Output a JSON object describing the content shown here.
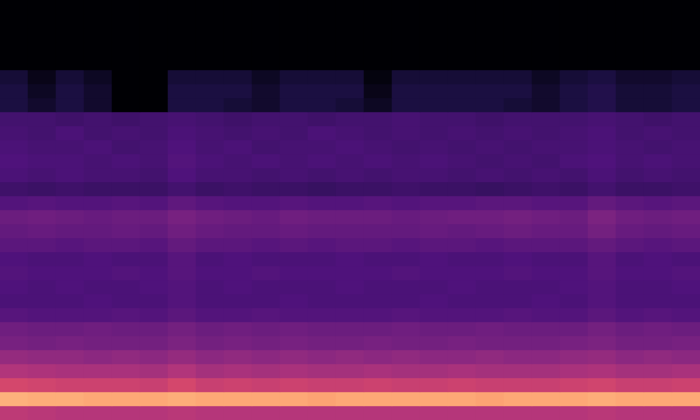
{
  "chart_data": {
    "type": "heatmap",
    "color": "magma",
    "zlim": [
      0,
      100
    ],
    "grid": false,
    "tick_labels": false,
    "cells": [
      [
        0,
        0,
        0,
        0,
        0,
        0,
        0,
        0,
        0,
        0,
        0,
        0,
        0,
        0,
        0,
        0,
        0,
        0,
        0,
        0,
        0,
        0,
        0,
        0,
        0
      ],
      [
        0,
        0,
        0,
        0,
        0,
        0,
        0,
        0,
        0,
        0,
        0,
        0,
        0,
        0,
        0,
        0,
        0,
        0,
        0,
        0,
        0,
        0,
        0,
        0,
        0
      ],
      [
        0,
        0,
        0,
        0,
        0,
        0,
        0,
        0,
        0,
        0,
        0,
        0,
        0,
        0,
        0,
        0,
        0,
        0,
        0,
        0,
        0,
        0,
        0,
        0,
        0
      ],
      [
        0,
        0,
        0,
        0,
        0,
        0,
        0,
        0,
        0,
        0,
        0,
        0,
        0,
        0,
        0,
        0,
        0,
        0,
        0,
        0,
        0,
        0,
        0,
        0,
        0
      ],
      [
        0,
        0,
        0,
        0,
        0,
        0,
        0,
        0,
        0,
        0,
        0,
        0,
        0,
        0,
        0,
        0,
        0,
        0,
        0,
        0,
        0,
        0,
        0,
        0,
        0
      ],
      [
        10,
        4,
        10,
        6,
        0,
        0,
        10,
        10,
        10,
        6,
        10,
        10,
        10,
        2,
        10,
        10,
        10,
        10,
        10,
        6,
        10,
        12,
        8,
        8,
        10
      ],
      [
        12,
        6,
        12,
        8,
        0,
        0,
        12,
        12,
        12,
        8,
        12,
        12,
        12,
        4,
        12,
        12,
        12,
        12,
        12,
        8,
        12,
        14,
        10,
        10,
        12
      ],
      [
        12,
        8,
        12,
        8,
        0,
        0,
        12,
        12,
        10,
        8,
        12,
        12,
        10,
        6,
        12,
        12,
        12,
        12,
        10,
        8,
        12,
        14,
        10,
        10,
        12
      ],
      [
        22,
        22,
        21,
        22,
        21,
        22,
        23,
        22,
        21,
        22,
        22,
        21,
        22,
        22,
        23,
        22,
        22,
        21,
        22,
        22,
        22,
        23,
        22,
        21,
        22
      ],
      [
        23,
        22,
        24,
        22,
        23,
        22,
        24,
        23,
        22,
        23,
        22,
        24,
        23,
        22,
        23,
        22,
        23,
        22,
        23,
        22,
        23,
        24,
        22,
        23,
        22
      ],
      [
        24,
        23,
        23,
        24,
        22,
        23,
        25,
        23,
        24,
        22,
        23,
        23,
        24,
        23,
        22,
        23,
        22,
        23,
        22,
        23,
        23,
        24,
        23,
        22,
        23
      ],
      [
        25,
        24,
        24,
        23,
        24,
        23,
        26,
        24,
        23,
        24,
        23,
        24,
        23,
        24,
        23,
        24,
        23,
        22,
        23,
        22,
        24,
        25,
        23,
        24,
        23
      ],
      [
        24,
        23,
        24,
        23,
        23,
        22,
        25,
        23,
        23,
        22,
        23,
        22,
        23,
        22,
        23,
        23,
        22,
        23,
        22,
        23,
        22,
        24,
        22,
        23,
        22
      ],
      [
        21,
        20,
        21,
        20,
        20,
        20,
        22,
        20,
        21,
        20,
        20,
        19,
        20,
        20,
        21,
        20,
        20,
        19,
        20,
        21,
        20,
        22,
        20,
        20,
        21
      ],
      [
        26,
        27,
        26,
        26,
        27,
        26,
        29,
        27,
        26,
        26,
        27,
        26,
        26,
        27,
        26,
        27,
        27,
        28,
        28,
        27,
        27,
        30,
        28,
        27,
        28
      ],
      [
        32,
        33,
        32,
        31,
        32,
        32,
        35,
        33,
        32,
        31,
        33,
        32,
        32,
        32,
        31,
        32,
        33,
        33,
        34,
        33,
        32,
        36,
        33,
        32,
        33
      ],
      [
        30,
        31,
        30,
        30,
        31,
        30,
        33,
        31,
        30,
        30,
        31,
        30,
        30,
        30,
        30,
        31,
        30,
        31,
        32,
        31,
        31,
        34,
        31,
        30,
        31
      ],
      [
        28,
        28,
        27,
        28,
        28,
        27,
        30,
        28,
        28,
        27,
        28,
        27,
        28,
        28,
        27,
        28,
        28,
        27,
        28,
        28,
        28,
        30,
        28,
        27,
        28
      ],
      [
        25,
        24,
        24,
        25,
        24,
        24,
        27,
        24,
        25,
        24,
        24,
        24,
        25,
        24,
        24,
        25,
        24,
        24,
        25,
        24,
        24,
        27,
        24,
        25,
        24
      ],
      [
        26,
        25,
        25,
        25,
        26,
        25,
        27,
        25,
        25,
        26,
        25,
        25,
        25,
        25,
        26,
        25,
        25,
        25,
        26,
        25,
        25,
        27,
        25,
        25,
        26
      ],
      [
        25,
        24,
        25,
        24,
        24,
        25,
        26,
        24,
        25,
        24,
        24,
        24,
        25,
        24,
        24,
        24,
        25,
        24,
        24,
        24,
        25,
        26,
        24,
        24,
        25
      ],
      [
        24,
        24,
        24,
        25,
        24,
        24,
        26,
        24,
        24,
        24,
        25,
        24,
        24,
        24,
        24,
        25,
        24,
        24,
        24,
        25,
        24,
        26,
        24,
        24,
        24
      ],
      [
        27,
        26,
        26,
        26,
        27,
        26,
        28,
        26,
        26,
        27,
        26,
        26,
        26,
        26,
        27,
        26,
        26,
        26,
        27,
        26,
        26,
        28,
        26,
        27,
        26
      ],
      [
        33,
        32,
        32,
        33,
        32,
        32,
        34,
        32,
        33,
        32,
        33,
        32,
        32,
        32,
        33,
        32,
        32,
        33,
        32,
        32,
        32,
        34,
        32,
        33,
        32
      ],
      [
        35,
        34,
        35,
        34,
        34,
        34,
        36,
        34,
        35,
        34,
        35,
        34,
        34,
        35,
        34,
        34,
        35,
        34,
        34,
        34,
        35,
        36,
        34,
        34,
        35
      ],
      [
        42,
        41,
        41,
        40,
        41,
        40,
        42,
        40,
        41,
        40,
        41,
        40,
        41,
        40,
        41,
        40,
        40,
        41,
        40,
        40,
        41,
        42,
        40,
        41,
        40
      ],
      [
        49,
        48,
        47,
        47,
        47,
        46,
        49,
        46,
        47,
        46,
        47,
        46,
        46,
        47,
        46,
        46,
        47,
        46,
        46,
        46,
        47,
        48,
        46,
        46,
        47
      ],
      [
        58,
        57,
        56,
        56,
        56,
        55,
        58,
        55,
        56,
        55,
        56,
        55,
        55,
        56,
        55,
        55,
        56,
        55,
        55,
        55,
        56,
        57,
        55,
        55,
        56
      ],
      [
        84,
        83,
        83,
        82,
        82,
        82,
        83,
        82,
        82,
        82,
        82,
        81,
        82,
        82,
        82,
        82,
        82,
        81,
        82,
        82,
        82,
        83,
        82,
        82,
        82
      ],
      [
        52,
        51,
        50,
        50,
        50,
        50,
        51,
        50,
        50,
        50,
        50,
        50,
        50,
        50,
        50,
        50,
        50,
        50,
        50,
        50,
        50,
        51,
        50,
        50,
        50
      ]
    ]
  }
}
